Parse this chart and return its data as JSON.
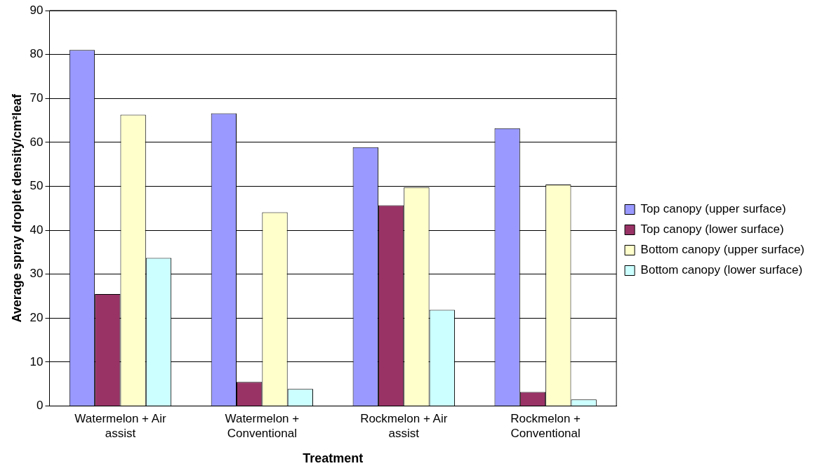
{
  "chart_data": {
    "type": "bar",
    "xlabel": "Treatment",
    "ylabel": "Average spray droplet density/cm²leaf",
    "categories": [
      "Watermelon + Air assist",
      "Watermelon + Conventional",
      "Rockmelon + Air assist",
      "Rockmelon + Conventional"
    ],
    "series": [
      {
        "name": "Top canopy (upper surface)",
        "color": "#9999ff",
        "values": [
          81,
          66.6,
          58.9,
          63.2
        ]
      },
      {
        "name": "Top canopy (lower surface)",
        "color": "#993366",
        "values": [
          25.5,
          5.5,
          45.7,
          3.2
        ]
      },
      {
        "name": "Bottom canopy (upper surface)",
        "color": "#ffffcc",
        "values": [
          66.3,
          44.1,
          49.8,
          50.4
        ]
      },
      {
        "name": "Bottom canopy (lower surface)",
        "color": "#ccffff",
        "values": [
          33.7,
          3.9,
          21.9,
          1.5
        ]
      }
    ],
    "ylim": [
      0,
      90
    ],
    "yticks": [
      0,
      10,
      20,
      30,
      40,
      50,
      60,
      70,
      80,
      90
    ],
    "grid": "y",
    "legend": "right"
  }
}
